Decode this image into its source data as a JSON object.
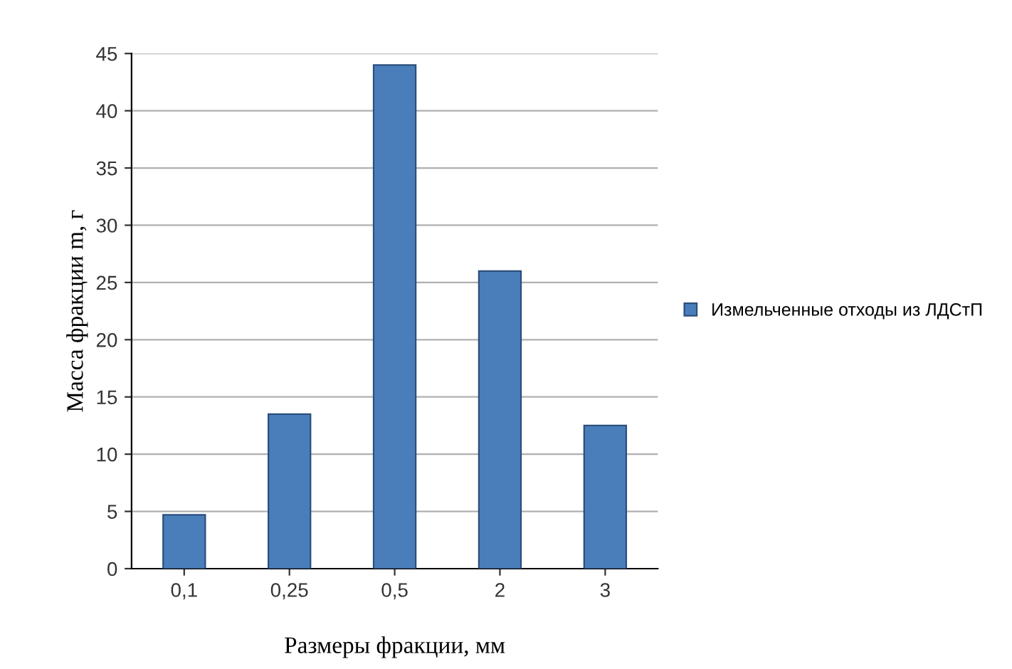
{
  "chart_data": {
    "type": "bar",
    "xlabel": "Размеры фракции, мм",
    "ylabel": "Масса фракции m, г",
    "categories": [
      "0,1",
      "0,25",
      "0,5",
      "2",
      "3"
    ],
    "series": [
      {
        "name": "Измельченные отходы из ЛДСтП",
        "color": "#4a7ebb",
        "values": [
          4.7,
          13.5,
          44,
          26,
          12.5
        ]
      }
    ],
    "ylim": [
      0,
      45
    ],
    "yticks": [
      0,
      5,
      10,
      15,
      20,
      25,
      30,
      35,
      40,
      45
    ],
    "grid": "y",
    "legend": "right"
  }
}
